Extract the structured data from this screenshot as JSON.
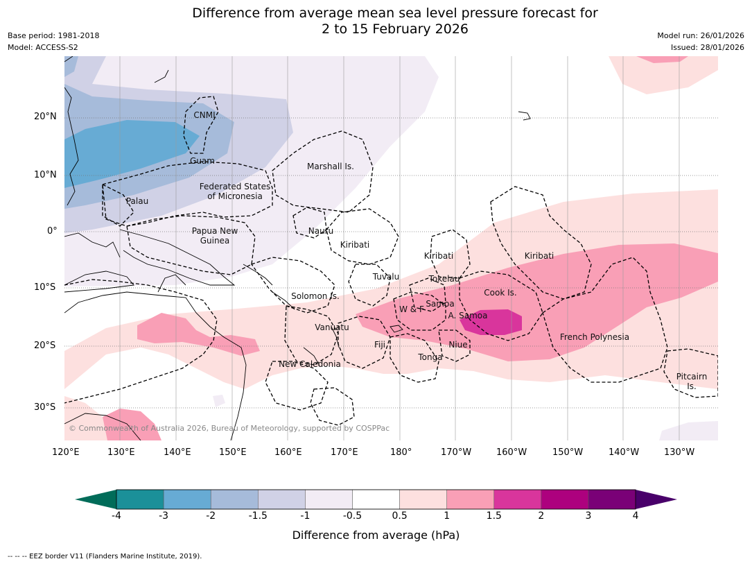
{
  "header": {
    "title_line1": "Difference from average mean sea level pressure forecast for",
    "title_line2": "2 to 15 February 2026",
    "base_period": "Base period: 1981-2018",
    "model": "Model: ACCESS-S2",
    "model_run": "Model run: 26/01/2026",
    "issued": "Issued: 28/01/2026"
  },
  "map": {
    "copyright": "© Commonwealth of Australia 2026, Bureau of Meteorology, supported by COSPPac",
    "labels": {
      "cnmi": "CNMI",
      "guam": "Guam",
      "marshall": "Marshall Is.",
      "fsm1": "Federated States",
      "fsm2": "of Micronesia",
      "palau": "Palau",
      "png1": "Papua New",
      "png2": "Guinea",
      "nauru": "Nauru",
      "kiribati_w": "Kiribati",
      "kiribati_c": "Kiribati",
      "kiribati_e": "Kiribati",
      "tuvalu": "Tuvalu",
      "tokelau": "Tokelau",
      "solomon": "Solomon Is.",
      "cook": "Cook Is.",
      "samoa": "Samoa",
      "wf": "W & F",
      "asamoa": "A. Samoa",
      "vanuatu": "Vanuatu",
      "fiji": "Fiji",
      "niue": "Niue",
      "tonga": "Tonga",
      "frpoly": "French Polynesia",
      "newcal": "New Caledonia",
      "pitcairn1": "Pitcairn",
      "pitcairn2": "Is."
    }
  },
  "axes": {
    "y_labels": [
      "20°N",
      "10°N",
      "0°",
      "10°S",
      "20°S",
      "30°S"
    ],
    "x_labels": [
      "120°E",
      "130°E",
      "140°E",
      "150°E",
      "160°E",
      "170°E",
      "180°",
      "170°W",
      "160°W",
      "150°W",
      "140°W",
      "130°W"
    ]
  },
  "colorbar": {
    "title": "Difference from average (hPa)",
    "ticks": [
      "-4",
      "-3",
      "-2",
      "-1.5",
      "-1",
      "-0.5",
      "0.5",
      "1",
      "1.5",
      "2",
      "3",
      "4"
    ],
    "bin_colors": [
      "#1b9099",
      "#67abd4",
      "#a6bbda",
      "#d0d1e6",
      "#f2ecf5",
      "#ffffff",
      "#fde0df",
      "#f99fb6",
      "#d9359c",
      "#ad017e",
      "#7a0177"
    ],
    "low_extend_color": "#016c59",
    "high_extend_color": "#49006a"
  },
  "footer": {
    "legend": "-- -- -- EEZ border V11 (Flanders Marine Institute, 2019)."
  }
}
